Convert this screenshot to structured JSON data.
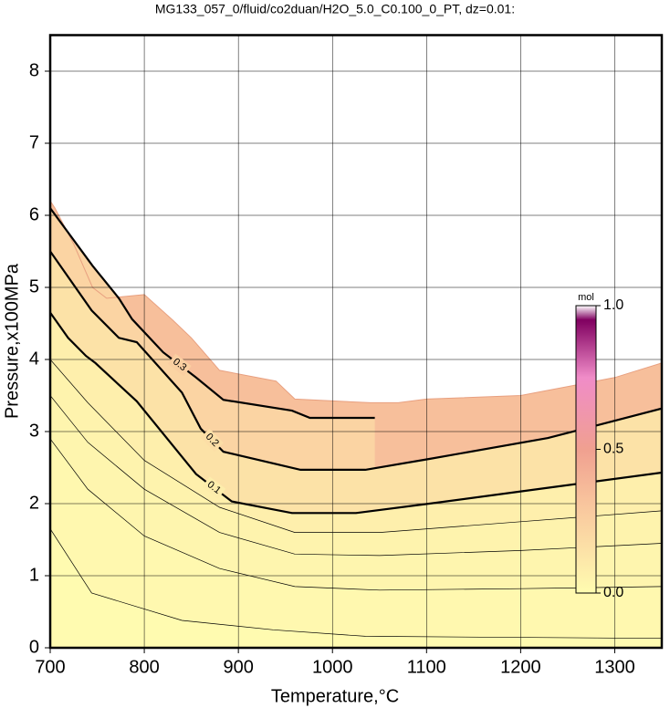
{
  "chart_data": {
    "type": "contour",
    "title": "MG133_057_0/fluid/co2duan/H2O_5.0_C0.100_0_PT, dz=0.01:",
    "x_label": "Temperature,°C",
    "y_label": "Pressure,x100MPa",
    "xlim": [
      700,
      1350
    ],
    "ylim": [
      0,
      8.5
    ],
    "xticks": [
      700,
      800,
      900,
      1000,
      1100,
      1200,
      1300
    ],
    "yticks": [
      0,
      1,
      2,
      3,
      4,
      5,
      6,
      7,
      8
    ],
    "grid": true,
    "domain": {
      "x": [
        700,
        705,
        715,
        725,
        735,
        745,
        760,
        800,
        830,
        850,
        880,
        940,
        960,
        1040,
        1070,
        1100,
        1200,
        1260,
        1300,
        1350
      ],
      "y": [
        6.2,
        6.1,
        5.85,
        5.6,
        5.3,
        5.0,
        4.85,
        4.9,
        4.55,
        4.3,
        3.85,
        3.7,
        3.45,
        3.4,
        3.4,
        3.45,
        3.5,
        3.65,
        3.75,
        3.95
      ]
    },
    "contours": [
      {
        "level": 0.3,
        "labeled": true,
        "x": [
          700,
          745,
          773,
          787,
          820,
          855,
          884,
          957,
          976,
          1045
        ],
        "y": [
          6.1,
          5.3,
          4.85,
          4.56,
          4.1,
          3.75,
          3.44,
          3.29,
          3.19,
          3.19
        ]
      },
      {
        "level": 0.2,
        "labeled": true,
        "x": [
          700,
          744,
          773,
          792,
          840,
          860,
          884,
          966,
          1035,
          1103,
          1229,
          1350
        ],
        "y": [
          5.5,
          4.68,
          4.3,
          4.24,
          3.54,
          3.04,
          2.72,
          2.47,
          2.47,
          2.62,
          2.91,
          3.32
        ]
      },
      {
        "level": 0.1,
        "labeled": true,
        "x": [
          700,
          719,
          738,
          748,
          792,
          855,
          893,
          957,
          1025,
          1103,
          1229,
          1350
        ],
        "y": [
          4.65,
          4.3,
          4.05,
          3.95,
          3.42,
          2.41,
          2.03,
          1.87,
          1.87,
          2.0,
          2.22,
          2.43
        ]
      },
      {
        "level": 0.07,
        "labeled": false,
        "x": [
          700,
          740,
          800,
          880,
          960,
          1050,
          1200,
          1350
        ],
        "y": [
          4.0,
          3.4,
          2.6,
          1.95,
          1.6,
          1.6,
          1.75,
          1.9
        ]
      },
      {
        "level": 0.05,
        "labeled": false,
        "x": [
          700,
          740,
          800,
          880,
          960,
          1050,
          1200,
          1350
        ],
        "y": [
          3.5,
          2.85,
          2.2,
          1.6,
          1.3,
          1.28,
          1.35,
          1.45
        ]
      },
      {
        "level": 0.03,
        "labeled": false,
        "x": [
          700,
          740,
          800,
          880,
          960,
          1050,
          1200,
          1350
        ],
        "y": [
          2.9,
          2.2,
          1.55,
          1.1,
          0.85,
          0.8,
          0.82,
          0.85
        ]
      },
      {
        "level": 0.01,
        "labeled": false,
        "x": [
          700,
          744,
          840,
          937,
          1035,
          1350
        ],
        "y": [
          1.65,
          0.76,
          0.38,
          0.25,
          0.16,
          0.13
        ]
      }
    ],
    "colorbar": {
      "label": "mol",
      "lim": [
        0,
        1
      ],
      "ticks": [
        {
          "value": 0,
          "label": "0.0"
        },
        {
          "value": 0.5,
          "label": "0.5"
        },
        {
          "value": 1,
          "label": "1.0"
        }
      ]
    }
  }
}
